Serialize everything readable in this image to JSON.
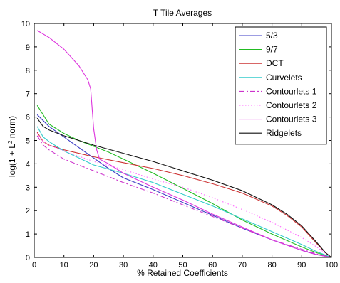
{
  "chart_data": {
    "type": "line",
    "title": "T Tile Averages",
    "xlabel": "% Retained Coefficients",
    "ylabel": "log(1 + L² norm)",
    "ylabel_parts": {
      "pre": "log(1 + L",
      "sup": "2",
      "post": " norm)"
    },
    "xlim": [
      0,
      100
    ],
    "ylim": [
      0,
      10
    ],
    "xticks": [
      0,
      10,
      20,
      30,
      40,
      50,
      60,
      70,
      80,
      90,
      100
    ],
    "yticks": [
      0,
      1,
      2,
      3,
      4,
      5,
      6,
      7,
      8,
      9,
      10
    ],
    "grid": false,
    "legend_position": "top-right",
    "series": [
      {
        "name": "5/3",
        "color": "#3b3bc4",
        "dash": "solid",
        "x": [
          1,
          5,
          10,
          15,
          20,
          25,
          30,
          40,
          50,
          60,
          70,
          80,
          90,
          95,
          100
        ],
        "y": [
          6.1,
          5.6,
          5.15,
          4.7,
          4.25,
          3.8,
          3.4,
          2.9,
          2.35,
          1.8,
          1.25,
          0.75,
          0.3,
          0.12,
          0.0
        ]
      },
      {
        "name": "9/7",
        "color": "#22bb22",
        "dash": "solid",
        "x": [
          1,
          5,
          10,
          15,
          20,
          25,
          30,
          40,
          50,
          60,
          70,
          80,
          90,
          95,
          100
        ],
        "y": [
          6.5,
          5.7,
          5.3,
          5.0,
          4.75,
          4.5,
          4.2,
          3.6,
          2.95,
          2.3,
          1.6,
          1.0,
          0.45,
          0.2,
          0.0
        ]
      },
      {
        "name": "DCT",
        "color": "#cc3333",
        "dash": "solid",
        "x": [
          1,
          3,
          5,
          10,
          20,
          30,
          40,
          50,
          60,
          70,
          80,
          85,
          90,
          95,
          98,
          100
        ],
        "y": [
          5.35,
          4.95,
          4.8,
          4.6,
          4.3,
          4.05,
          3.8,
          3.5,
          3.15,
          2.75,
          2.2,
          1.8,
          1.3,
          0.6,
          0.2,
          0.0
        ]
      },
      {
        "name": "Curvelets",
        "color": "#33cccc",
        "dash": "solid",
        "x": [
          1,
          3,
          5,
          10,
          20,
          30,
          40,
          50,
          60,
          70,
          80,
          90,
          95,
          100
        ],
        "y": [
          5.6,
          5.15,
          4.95,
          4.55,
          3.95,
          3.6,
          3.2,
          2.7,
          2.2,
          1.65,
          1.1,
          0.55,
          0.25,
          0.0
        ]
      },
      {
        "name": "Contourlets 1",
        "color": "#cc33cc",
        "dash": "dashdot",
        "x": [
          1,
          3,
          5,
          10,
          20,
          30,
          40,
          50,
          60,
          70,
          80,
          90,
          95,
          100
        ],
        "y": [
          5.2,
          4.8,
          4.6,
          4.2,
          3.7,
          3.2,
          2.75,
          2.25,
          1.75,
          1.25,
          0.75,
          0.35,
          0.15,
          0.0
        ]
      },
      {
        "name": "Contourlets 2",
        "color": "#ff66ff",
        "dash": "dotted",
        "x": [
          1,
          3,
          5,
          10,
          20,
          30,
          40,
          50,
          60,
          70,
          80,
          90,
          95,
          100
        ],
        "y": [
          5.3,
          4.95,
          4.8,
          4.55,
          4.1,
          3.75,
          3.35,
          3.0,
          2.55,
          2.05,
          1.5,
          0.85,
          0.45,
          0.0
        ]
      },
      {
        "name": "Contourlets 3",
        "color": "#dd33dd",
        "dash": "solid",
        "x": [
          1,
          5,
          10,
          15,
          18,
          19,
          20,
          21,
          22,
          25,
          30,
          40,
          50,
          60,
          70,
          80,
          90,
          95,
          100
        ],
        "y": [
          9.7,
          9.4,
          8.9,
          8.2,
          7.6,
          7.2,
          5.5,
          4.6,
          4.2,
          4.0,
          3.6,
          3.0,
          2.45,
          1.85,
          1.3,
          0.75,
          0.3,
          0.12,
          0.0
        ]
      },
      {
        "name": "Ridgelets",
        "color": "#111111",
        "dash": "solid",
        "x": [
          1,
          3,
          5,
          10,
          20,
          30,
          40,
          50,
          60,
          70,
          80,
          85,
          90,
          95,
          98,
          100
        ],
        "y": [
          5.95,
          5.6,
          5.45,
          5.2,
          4.8,
          4.45,
          4.1,
          3.7,
          3.3,
          2.85,
          2.25,
          1.85,
          1.35,
          0.65,
          0.2,
          0.0
        ]
      }
    ]
  }
}
